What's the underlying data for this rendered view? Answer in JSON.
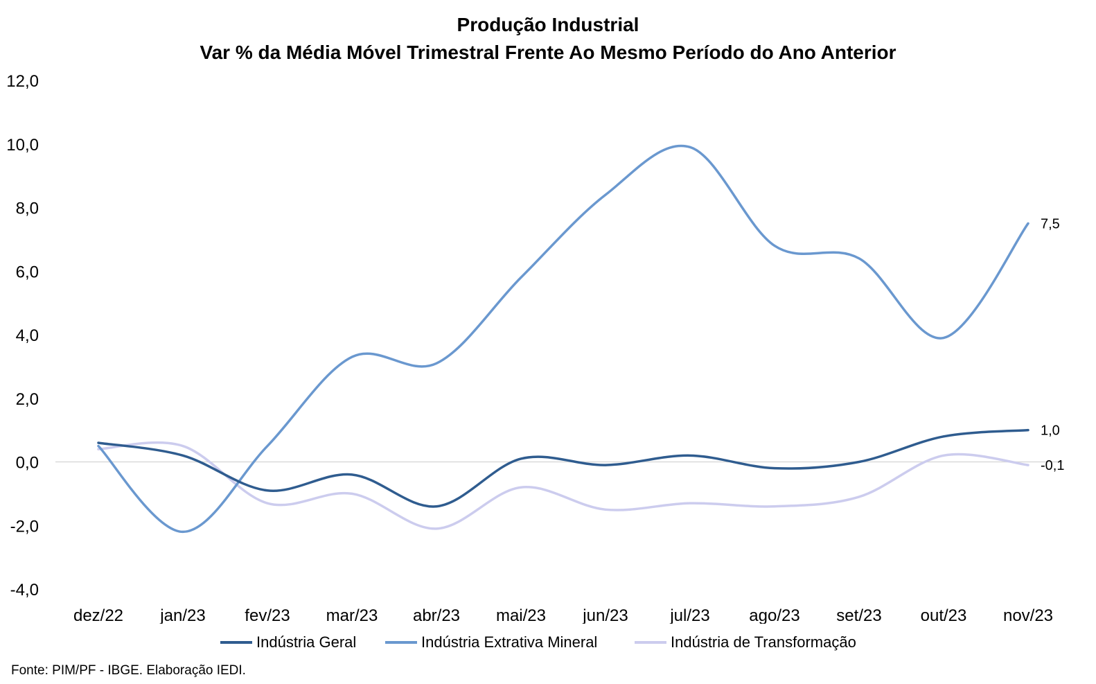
{
  "chart_data": {
    "type": "line",
    "title": "Produção Industrial",
    "subtitle": "Var % da Média Móvel Trimestral Frente Ao Mesmo Período do Ano Anterior",
    "categories": [
      "dez/22",
      "jan/23",
      "fev/23",
      "mar/23",
      "abr/23",
      "mai/23",
      "jun/23",
      "jul/23",
      "ago/23",
      "set/23",
      "out/23",
      "nov/23"
    ],
    "series": [
      {
        "name": "Indústria Geral",
        "color": "#2F5C8F",
        "values": [
          0.6,
          0.2,
          -0.9,
          -0.4,
          -1.4,
          0.1,
          -0.1,
          0.2,
          -0.2,
          0.0,
          0.8,
          1.0
        ]
      },
      {
        "name": "Indústria Extrativa Mineral",
        "color": "#6A98CF",
        "values": [
          0.5,
          -2.2,
          0.5,
          3.3,
          3.1,
          5.8,
          8.4,
          9.9,
          6.8,
          6.4,
          3.9,
          7.5
        ]
      },
      {
        "name": "Indústria de Transformação",
        "color": "#CCCCEE",
        "values": [
          0.4,
          0.5,
          -1.3,
          -1.0,
          -2.1,
          -0.8,
          -1.5,
          -1.3,
          -1.4,
          -1.1,
          0.2,
          -0.1
        ]
      }
    ],
    "y_ticks": [
      "12,0",
      "10,0",
      "8,0",
      "6,0",
      "4,0",
      "2,0",
      "0,0",
      "-2,0",
      "-4,0"
    ],
    "ylim": [
      -4,
      12
    ],
    "end_labels": [
      "1,0",
      "7,5",
      "-0,1"
    ],
    "legend_position": "bottom",
    "grid": false,
    "source": "Fonte: PIM/PF - IBGE. Elaboração IEDI."
  }
}
